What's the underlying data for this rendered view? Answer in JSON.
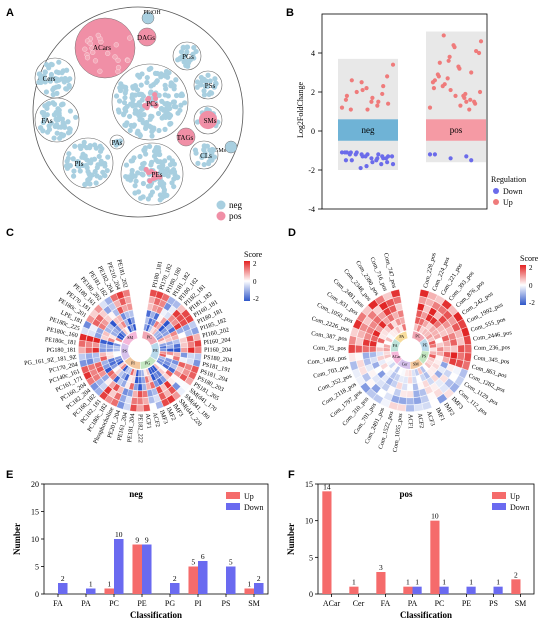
{
  "panels": {
    "A": "A",
    "B": "B",
    "C": "C",
    "D": "D",
    "E": "E",
    "F": "F"
  },
  "panel_a": {
    "groups": [
      {
        "label": "ACars"
      },
      {
        "label": "PEtOH"
      },
      {
        "label": "DAGs"
      },
      {
        "label": "PGs"
      },
      {
        "label": "Cers"
      },
      {
        "label": "PSs"
      },
      {
        "label": "PCs"
      },
      {
        "label": "FAs"
      },
      {
        "label": "SMs"
      },
      {
        "label": "PAs"
      },
      {
        "label": "TAGs"
      },
      {
        "label": "GMs"
      },
      {
        "label": "PIs"
      },
      {
        "label": "CLs"
      },
      {
        "label": "PEs"
      }
    ],
    "legend": [
      {
        "label": "neg",
        "color": "#a8cfe0"
      },
      {
        "label": "pos",
        "color": "#f08fa6"
      }
    ]
  },
  "panel_b": {
    "ylabel": "Log2FoldChange",
    "boxes": [
      {
        "label": "neg",
        "color": "#6fb3d6"
      },
      {
        "label": "pos",
        "color": "#f59aa4"
      }
    ],
    "legend_title": "Regulation",
    "legend": [
      {
        "label": "Down",
        "color": "#6b6bea"
      },
      {
        "label": "Up",
        "color": "#ef7b7b"
      }
    ]
  },
  "panel_c": {
    "score_title": "Score",
    "score_ticks": [
      "2",
      "0",
      "-2"
    ],
    "inner_labels": [
      "PC",
      "PE",
      "PG",
      "PI",
      "PS",
      "SM"
    ],
    "top_labels": [
      "PI180_181",
      "PI170_182",
      "PI180_180",
      "PI181_182",
      "PI180_182",
      "PI182_181",
      "PI181_182",
      "PI160_181",
      "PI180_181",
      "PI185_182",
      "PI160_202",
      "PI160_204",
      "PI160_204",
      "PS180_204",
      "PS181_191",
      "PS181_204",
      "PS180_203",
      "PS181_205",
      "SM(d41_170",
      "SM(d41_180",
      "SM(d41_220"
    ],
    "right_labels": [
      "IMF3",
      "IMF2",
      "IMF3",
      "ACF2",
      "ACF1"
    ],
    "left_labels": [
      "PG_161_9Z_181_9Z",
      "PG180_181",
      "PE180c_181",
      "PE180c_160",
      "PE180c_225",
      "LPE_181",
      "PE180c_201",
      "PE170_181",
      "PE180_161",
      "PE180_202",
      "PE181_182",
      "PE182_204",
      "PE210_204",
      "PE181_202"
    ],
    "bottom_labels": [
      "PE182_222",
      "PE181_204",
      "PE161_204",
      "PE201_204",
      "Phosphocholine",
      "PC180c_182",
      "PC182_181",
      "PC160_182",
      "PC182_204",
      "PC160_204",
      "PC161_171",
      "PC140c_161",
      "PC170_204"
    ]
  },
  "panel_d": {
    "score_title": "Score",
    "score_ticks": [
      "2",
      "0",
      "-2"
    ],
    "inner_labels": [
      "PC",
      "PE",
      "PS",
      "SM",
      "Cer",
      "ACar",
      "FA",
      "PA"
    ],
    "top_labels": [
      "Com_228_pos",
      "Com_224_pos",
      "Com_221_pos",
      "Com_393_pos",
      "Com_876_pos",
      "Com_242_pos",
      "Com_1992_pos",
      "Com_555_pos",
      "Com_2446_pos",
      "Com_236_pos",
      "Com_345_pos",
      "Com_863_pos",
      "Com_1282_pos",
      "Com_1129_pos",
      "Com_112_pos"
    ],
    "right_labels": [
      "IMF3",
      "IMF2",
      "IMF1",
      "ACF3",
      "ACF2",
      "ACF1"
    ],
    "left_labels": [
      "Com_2481_pos",
      "Com_2348_pos",
      "Com_2390_pos",
      "Com_716_pos",
      "Com_747_pos"
    ],
    "bottom_labels": [
      "Com_1055_pos",
      "Com_1522_pos",
      "Com_2491_pos",
      "Com_701_pos",
      "Com_310_pos",
      "Com_1797_pos",
      "Com_2118_pos",
      "Com_352_pos",
      "Com_703_pos",
      "Com_1486_pos",
      "Com_75_pos",
      "Com_387_pos",
      "Com_2226_pos",
      "Com_1050_pos",
      "Com_831_pos"
    ]
  },
  "colors": {
    "up": "#f56b6b",
    "down": "#6a6af0"
  },
  "chart_data": [
    {
      "panel": "B",
      "type": "scatter",
      "title": "",
      "xlabel": "",
      "ylabel": "Log2FoldChange",
      "ylim": [
        -4,
        6
      ],
      "yticks": [
        -4,
        -2,
        0,
        2,
        4
      ],
      "categories": [
        "neg",
        "pos"
      ],
      "box_ranges": [
        [
          -2,
          3.7
        ],
        [
          -1.6,
          5.1
        ]
      ],
      "band": [
        -0.5,
        0.6
      ],
      "series": [
        {
          "name": "Down",
          "category": "neg",
          "values": [
            -1.1,
            -1.2,
            -1.3,
            -1.1,
            -1.4,
            -1.2,
            -1.5,
            -1.3,
            -1.6,
            -1.1,
            -1.7,
            -1.4,
            -1.2,
            -1.5,
            -1.3,
            -1.8,
            -1.1,
            -1.6,
            -1.4,
            -1.2,
            -1.3,
            -1.5,
            -1.9,
            -1.1,
            -1.7,
            -1.3,
            -1.2,
            -1.4
          ]
        },
        {
          "name": "Up",
          "category": "neg",
          "values": [
            1.2,
            1.5,
            2.1,
            1.8,
            2.3,
            1.1,
            2.6,
            1.4,
            1.7,
            2.0,
            3.4,
            1.3,
            2.5,
            1.6,
            1.9,
            2.2,
            1.1,
            2.8,
            1.5
          ]
        },
        {
          "name": "Down",
          "category": "pos",
          "values": [
            -1.2,
            -1.3,
            -1.4,
            -1.2,
            -1.5
          ]
        },
        {
          "name": "Up",
          "category": "pos",
          "values": [
            1.2,
            1.5,
            2.1,
            2.6,
            3.0,
            1.8,
            3.5,
            4.1,
            1.3,
            2.4,
            4.6,
            1.9,
            3.8,
            2.2,
            1.6,
            4.3,
            2.8,
            1.4,
            3.2,
            4.9,
            2.0,
            1.7,
            3.6,
            2.5,
            1.1,
            4.4,
            2.9,
            1.5,
            3.3,
            2.3,
            4.0,
            1.8,
            2.7
          ]
        }
      ]
    },
    {
      "panel": "E",
      "type": "bar",
      "title": "neg",
      "xlabel": "Classification",
      "ylabel": "Number",
      "ylim": [
        0,
        20
      ],
      "yticks": [
        0,
        5,
        10,
        15,
        20
      ],
      "categories": [
        "FA",
        "PA",
        "PC",
        "PE",
        "PG",
        "PI",
        "PS",
        "SM"
      ],
      "series": [
        {
          "name": "Up",
          "values": [
            0,
            0,
            1,
            9,
            0,
            5,
            0,
            1
          ]
        },
        {
          "name": "Down",
          "values": [
            2,
            1,
            10,
            9,
            2,
            6,
            5,
            2
          ]
        }
      ]
    },
    {
      "panel": "F",
      "type": "bar",
      "title": "pos",
      "xlabel": "Classification",
      "ylabel": "Number",
      "ylim": [
        0,
        15
      ],
      "yticks": [
        0,
        5,
        10,
        15
      ],
      "categories": [
        "ACar",
        "Cer",
        "FA",
        "PA",
        "PC",
        "PE",
        "PS",
        "SM"
      ],
      "series": [
        {
          "name": "Up",
          "values": [
            14,
            1,
            3,
            1,
            10,
            0,
            0,
            2
          ]
        },
        {
          "name": "Down",
          "values": [
            0,
            0,
            0,
            1,
            1,
            1,
            1,
            0
          ]
        }
      ]
    }
  ]
}
